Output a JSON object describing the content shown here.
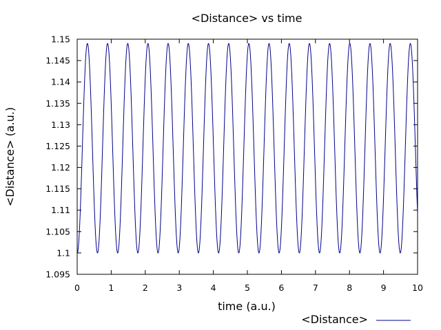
{
  "chart_data": {
    "type": "line",
    "title": "<Distance> vs time",
    "xlabel": "time (a.u.)",
    "ylabel": "<Distance> (a.u.)",
    "xlim": [
      0,
      10
    ],
    "ylim": [
      1.095,
      1.15
    ],
    "x_ticks": [
      "0",
      "1",
      "2",
      "3",
      "4",
      "5",
      "6",
      "7",
      "8",
      "9",
      "10"
    ],
    "y_ticks": [
      "1.095",
      "1.1",
      "1.105",
      "1.11",
      "1.115",
      "1.12",
      "1.125",
      "1.13",
      "1.135",
      "1.14",
      "1.145",
      "1.15"
    ],
    "grid": false,
    "legend_position": "bottom-right",
    "series": [
      {
        "name": "<Distance>",
        "color": "#00008b",
        "model": "sinusoid",
        "mean": 1.1245,
        "amplitude": 0.0245,
        "period": 0.593,
        "phase_peak_at_x": 0.3,
        "x_range": [
          0,
          10
        ],
        "sample_count": 2000
      }
    ]
  }
}
